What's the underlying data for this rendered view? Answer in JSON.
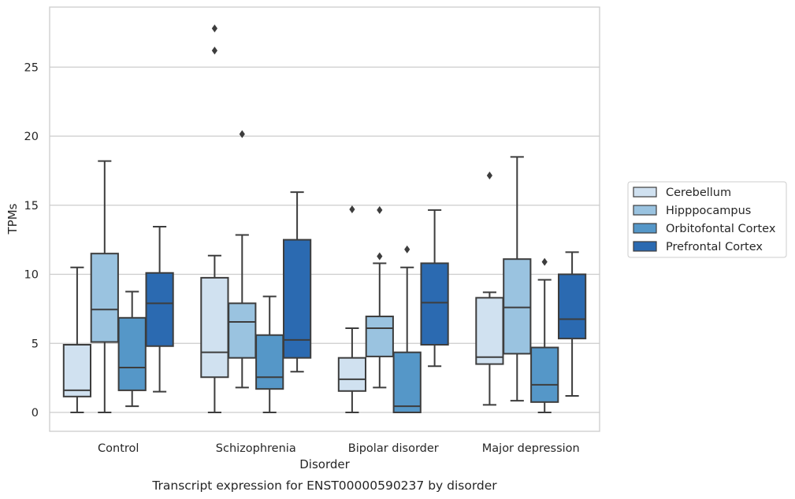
{
  "chart_data": {
    "type": "boxplot",
    "caption": "Transcript expression for ENST00000590237 by disorder",
    "xlabel": "Disorder",
    "ylabel": "TPMs",
    "ylim": [
      -1.3,
      29.3
    ],
    "yticks": [
      0,
      5,
      10,
      15,
      20,
      25
    ],
    "grid": "horizontal",
    "legend_position": "right",
    "categories": [
      "Control",
      "Schizophrenia",
      "Bipolar disorder",
      "Major depression"
    ],
    "series": [
      {
        "name": "Cerebellum",
        "color": "#d0e1f0",
        "boxes": [
          {
            "whislo": 0,
            "q1": 1.15,
            "med": 1.6,
            "q3": 4.9,
            "whishi": 10.5,
            "fliers": []
          },
          {
            "whislo": 0,
            "q1": 2.55,
            "med": 4.35,
            "q3": 9.75,
            "whishi": 11.35,
            "fliers": [
              27.8,
              26.2
            ]
          },
          {
            "whislo": 0,
            "q1": 1.55,
            "med": 2.4,
            "q3": 3.95,
            "whishi": 6.1,
            "fliers": [
              14.7
            ]
          },
          {
            "whislo": 0.55,
            "q1": 3.5,
            "med": 4.0,
            "q3": 8.3,
            "whishi": 8.7,
            "fliers": [
              17.15
            ]
          }
        ]
      },
      {
        "name": "Hipppocampus",
        "color": "#9ac3e0",
        "boxes": [
          {
            "whislo": 0,
            "q1": 5.1,
            "med": 7.45,
            "q3": 11.5,
            "whishi": 18.2,
            "fliers": []
          },
          {
            "whislo": 1.8,
            "q1": 3.95,
            "med": 6.55,
            "q3": 7.9,
            "whishi": 12.85,
            "fliers": [
              20.15
            ]
          },
          {
            "whislo": 1.8,
            "q1": 4.05,
            "med": 6.1,
            "q3": 6.95,
            "whishi": 10.8,
            "fliers": [
              14.65,
              11.3
            ]
          },
          {
            "whislo": 0.85,
            "q1": 4.25,
            "med": 7.6,
            "q3": 11.1,
            "whishi": 18.5,
            "fliers": []
          }
        ]
      },
      {
        "name": "Orbitofontal Cortex",
        "color": "#5597c8",
        "boxes": [
          {
            "whislo": 0.45,
            "q1": 1.6,
            "med": 3.25,
            "q3": 6.85,
            "whishi": 8.75,
            "fliers": []
          },
          {
            "whislo": 0,
            "q1": 1.7,
            "med": 2.55,
            "q3": 5.6,
            "whishi": 8.4,
            "fliers": []
          },
          {
            "whislo": 0,
            "q1": 0,
            "med": 0.45,
            "q3": 4.35,
            "whishi": 10.5,
            "fliers": [
              11.8
            ]
          },
          {
            "whislo": 0,
            "q1": 0.75,
            "med": 2.0,
            "q3": 4.7,
            "whishi": 9.6,
            "fliers": [
              10.9
            ]
          }
        ]
      },
      {
        "name": "Prefrontal Cortex",
        "color": "#2b6ab1",
        "boxes": [
          {
            "whislo": 1.5,
            "q1": 4.8,
            "med": 7.9,
            "q3": 10.1,
            "whishi": 13.45,
            "fliers": []
          },
          {
            "whislo": 2.95,
            "q1": 3.95,
            "med": 5.25,
            "q3": 12.5,
            "whishi": 15.95,
            "fliers": []
          },
          {
            "whislo": 3.35,
            "q1": 4.9,
            "med": 7.95,
            "q3": 10.8,
            "whishi": 14.65,
            "fliers": []
          },
          {
            "whislo": 1.2,
            "q1": 5.35,
            "med": 6.75,
            "q3": 10.0,
            "whishi": 11.6,
            "fliers": []
          }
        ]
      }
    ]
  }
}
